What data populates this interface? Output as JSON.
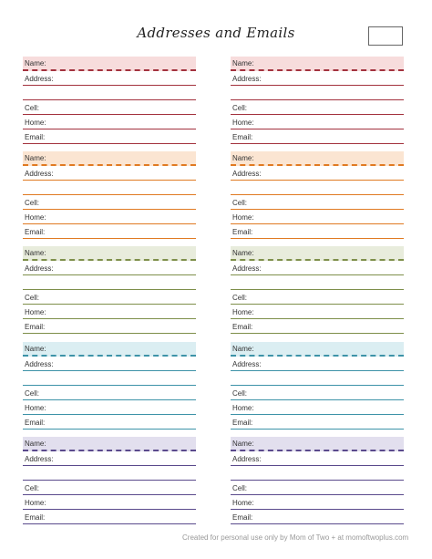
{
  "title": "Addresses and Emails",
  "labels": {
    "name": "Name:",
    "address": "Address:",
    "cell": "Cell:",
    "home": "Home:",
    "email": "Email:"
  },
  "footer": "Created for personal use only by Mom of Two + at momoftwoplus.com",
  "section_colors": [
    {
      "band": "#f7dcdc",
      "line": "#a3323e"
    },
    {
      "band": "#fbe5d2",
      "line": "#e07a22"
    },
    {
      "band": "#e8ecdc",
      "line": "#7e8f4a"
    },
    {
      "band": "#dbeef2",
      "line": "#3d93a8"
    },
    {
      "band": "#e2dfee",
      "line": "#5a4a8c"
    }
  ]
}
